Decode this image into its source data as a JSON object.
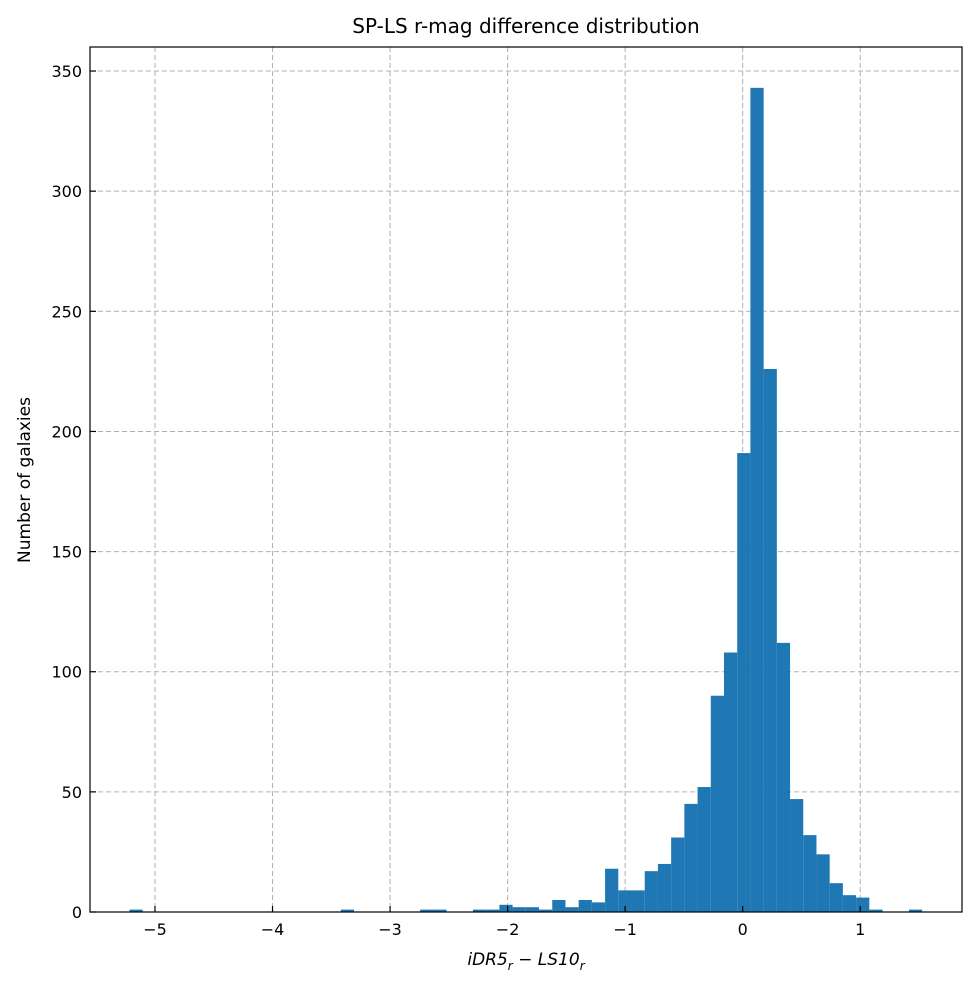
{
  "chart_data": {
    "type": "bar",
    "subtype": "histogram",
    "title": "SP-LS r-mag difference distribution",
    "xlabel": "iDR5_r − LS10_r",
    "xlabel_parts": {
      "a": "iDR5",
      "a_sub": "r",
      "op": " − ",
      "b": "LS10",
      "b_sub": "r"
    },
    "ylabel": "Number of galaxies",
    "xlim": [
      -5.553,
      1.866
    ],
    "ylim": [
      0,
      360
    ],
    "grid": true,
    "bin_start": -5.217,
    "bin_width": 0.1124,
    "counts": [
      1,
      0,
      0,
      0,
      0,
      0,
      0,
      0,
      0,
      0,
      0,
      0,
      0,
      0,
      0,
      0,
      1,
      0,
      0,
      0,
      0,
      0,
      1,
      1,
      0,
      0,
      1,
      1,
      3,
      2,
      2,
      1,
      5,
      2,
      5,
      4,
      18,
      9,
      9,
      17,
      20,
      31,
      45,
      52,
      90,
      108,
      191,
      343,
      226,
      112,
      47,
      32,
      24,
      12,
      7,
      6,
      1,
      0,
      0,
      1
    ],
    "color": "#1f77b4",
    "xticks": [
      {
        "v": -5,
        "label": "−5"
      },
      {
        "v": -4,
        "label": "−4"
      },
      {
        "v": -3,
        "label": "−3"
      },
      {
        "v": -2,
        "label": "−2"
      },
      {
        "v": -1,
        "label": "−1"
      },
      {
        "v": 0,
        "label": "0"
      },
      {
        "v": 1,
        "label": "1"
      }
    ],
    "yticks": [
      {
        "v": 0,
        "label": "0"
      },
      {
        "v": 50,
        "label": "50"
      },
      {
        "v": 100,
        "label": "100"
      },
      {
        "v": 150,
        "label": "150"
      },
      {
        "v": 200,
        "label": "200"
      },
      {
        "v": 250,
        "label": "250"
      },
      {
        "v": 300,
        "label": "300"
      },
      {
        "v": 350,
        "label": "350"
      }
    ]
  }
}
